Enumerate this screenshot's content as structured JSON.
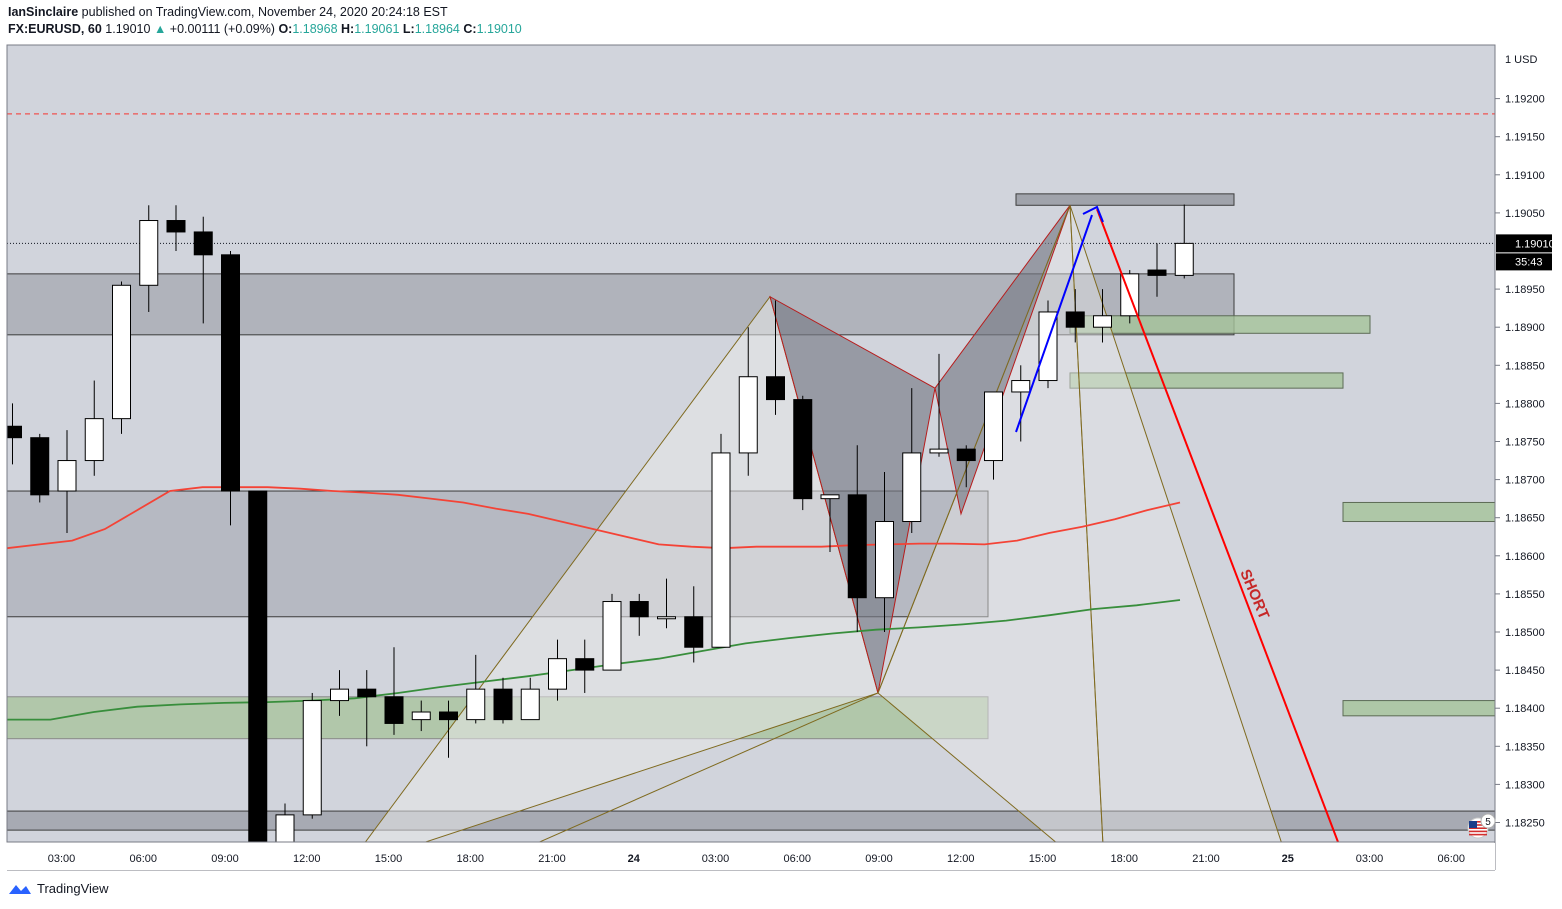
{
  "header": {
    "author": "IanSinclaire",
    "published": "published on TradingView.com, November 24, 2020 20:24:18 EST",
    "symbol": "FX:EURUSD, 60",
    "last": "1.19010",
    "change_arrow": "▲",
    "change": "+0.00111 (+0.09%)",
    "o_label": "O:",
    "o_value": "1.18968",
    "h_label": "H:",
    "h_value": "1.19061",
    "l_label": "L:",
    "l_value": "1.18964",
    "c_label": "C:",
    "c_value": "1.19010"
  },
  "footer": {
    "brand": "TradingView"
  },
  "colors": {
    "background": "#d1d4dc",
    "bull_candle": "#ffffff",
    "bear_candle": "#000000",
    "ma_red": "#f44336",
    "ma_green": "#388e3c",
    "short_arrow": "#ff0000",
    "swing_arrow": "#0000ff",
    "alert_line": "#ef5350",
    "pattern_fill": "#787b86",
    "pattern_edge": "#b71c1c",
    "triangle_edge": "#7f6a1f",
    "green_zone": "#a5c39a",
    "gray_zone": "#9598a1"
  },
  "chart_data": {
    "type": "candlestick",
    "instrument": "FX:EURUSD",
    "timeframe": "60",
    "currency_label": "USD",
    "y_axis": {
      "range": [
        1.1822,
        1.1921
      ],
      "ticks": [
        "1.19200",
        "1.19150",
        "1.19100",
        "1.19050",
        "1.18950",
        "1.18900",
        "1.18850",
        "1.18800",
        "1.18750",
        "1.18700",
        "1.18650",
        "1.18600",
        "1.18550",
        "1.18500",
        "1.18450",
        "1.18400",
        "1.18350",
        "1.18300",
        "1.18250"
      ],
      "top_label": "1 USD"
    },
    "x_axis": {
      "ticks": [
        "03:00",
        "06:00",
        "09:00",
        "12:00",
        "15:00",
        "18:00",
        "21:00",
        "24",
        "03:00",
        "06:00",
        "09:00",
        "12:00",
        "15:00",
        "18:00",
        "21:00",
        "25",
        "03:00",
        "06:00"
      ],
      "bold_ticks": [
        "24",
        "25"
      ]
    },
    "last_price": {
      "label": "1.19010",
      "countdown": "35:43",
      "value": 1.1901
    },
    "alert_level": 1.1918,
    "candles": [
      {
        "o": 1.1877,
        "h": 1.188,
        "l": 1.1872,
        "c": 1.18755
      },
      {
        "o": 1.18755,
        "h": 1.1876,
        "l": 1.1867,
        "c": 1.1868
      },
      {
        "o": 1.18685,
        "h": 1.18765,
        "l": 1.1863,
        "c": 1.18725
      },
      {
        "o": 1.18725,
        "h": 1.1883,
        "l": 1.18705,
        "c": 1.1878
      },
      {
        "o": 1.1878,
        "h": 1.1896,
        "l": 1.1876,
        "c": 1.18955
      },
      {
        "o": 1.18955,
        "h": 1.1906,
        "l": 1.1892,
        "c": 1.1904
      },
      {
        "o": 1.1904,
        "h": 1.1906,
        "l": 1.19,
        "c": 1.19025
      },
      {
        "o": 1.19025,
        "h": 1.19045,
        "l": 1.18905,
        "c": 1.18995
      },
      {
        "o": 1.18995,
        "h": 1.19,
        "l": 1.1864,
        "c": 1.18685
      },
      {
        "o": 1.18685,
        "h": 1.18685,
        "l": 1.18195,
        "c": 1.1821
      },
      {
        "o": 1.182,
        "h": 1.18275,
        "l": 1.1818,
        "c": 1.1826
      },
      {
        "o": 1.1826,
        "h": 1.1842,
        "l": 1.18255,
        "c": 1.1841
      },
      {
        "o": 1.1841,
        "h": 1.1845,
        "l": 1.1839,
        "c": 1.18425
      },
      {
        "o": 1.18425,
        "h": 1.1845,
        "l": 1.1835,
        "c": 1.18415
      },
      {
        "o": 1.18415,
        "h": 1.1848,
        "l": 1.18365,
        "c": 1.1838
      },
      {
        "o": 1.18385,
        "h": 1.1841,
        "l": 1.1837,
        "c": 1.18395
      },
      {
        "o": 1.18395,
        "h": 1.1841,
        "l": 1.18335,
        "c": 1.18385
      },
      {
        "o": 1.18385,
        "h": 1.1847,
        "l": 1.1838,
        "c": 1.18425
      },
      {
        "o": 1.18425,
        "h": 1.1844,
        "l": 1.1838,
        "c": 1.18385
      },
      {
        "o": 1.18385,
        "h": 1.1844,
        "l": 1.18385,
        "c": 1.18425
      },
      {
        "o": 1.18425,
        "h": 1.1849,
        "l": 1.1841,
        "c": 1.18465
      },
      {
        "o": 1.18465,
        "h": 1.1849,
        "l": 1.1842,
        "c": 1.1845
      },
      {
        "o": 1.1845,
        "h": 1.1855,
        "l": 1.1845,
        "c": 1.1854
      },
      {
        "o": 1.1854,
        "h": 1.1855,
        "l": 1.18495,
        "c": 1.1852
      },
      {
        "o": 1.1852,
        "h": 1.1857,
        "l": 1.18505,
        "c": 1.1852
      },
      {
        "o": 1.1852,
        "h": 1.1856,
        "l": 1.1846,
        "c": 1.1848
      },
      {
        "o": 1.1848,
        "h": 1.1876,
        "l": 1.1848,
        "c": 1.18735
      },
      {
        "o": 1.18735,
        "h": 1.189,
        "l": 1.18705,
        "c": 1.18835
      },
      {
        "o": 1.18835,
        "h": 1.18935,
        "l": 1.18785,
        "c": 1.18805
      },
      {
        "o": 1.18805,
        "h": 1.1881,
        "l": 1.1866,
        "c": 1.18675
      },
      {
        "o": 1.18675,
        "h": 1.1868,
        "l": 1.18605,
        "c": 1.1868
      },
      {
        "o": 1.1868,
        "h": 1.18745,
        "l": 1.185,
        "c": 1.18545
      },
      {
        "o": 1.18545,
        "h": 1.1871,
        "l": 1.185,
        "c": 1.18645
      },
      {
        "o": 1.18645,
        "h": 1.1882,
        "l": 1.1863,
        "c": 1.18735
      },
      {
        "o": 1.18735,
        "h": 1.18865,
        "l": 1.1873,
        "c": 1.1874
      },
      {
        "o": 1.1874,
        "h": 1.18745,
        "l": 1.1869,
        "c": 1.18725
      },
      {
        "o": 1.18725,
        "h": 1.18815,
        "l": 1.187,
        "c": 1.18815
      },
      {
        "o": 1.18815,
        "h": 1.1885,
        "l": 1.1875,
        "c": 1.1883
      },
      {
        "o": 1.1883,
        "h": 1.18935,
        "l": 1.1882,
        "c": 1.1892
      },
      {
        "o": 1.1892,
        "h": 1.1895,
        "l": 1.1888,
        "c": 1.189
      },
      {
        "o": 1.189,
        "h": 1.1895,
        "l": 1.1888,
        "c": 1.18915
      },
      {
        "o": 1.18915,
        "h": 1.18975,
        "l": 1.18905,
        "c": 1.1897
      },
      {
        "o": 1.18975,
        "h": 1.1901,
        "l": 1.1894,
        "c": 1.18968
      },
      {
        "o": 1.18968,
        "h": 1.19061,
        "l": 1.18964,
        "c": 1.1901
      }
    ],
    "moving_averages": [
      {
        "color": "red",
        "points": [
          1.1861,
          1.18615,
          1.1862,
          1.18635,
          1.1866,
          1.18685,
          1.1869,
          1.1869,
          1.1869,
          1.18688,
          1.18685,
          1.18683,
          1.1868,
          1.18675,
          1.1867,
          1.18662,
          1.18655,
          1.18645,
          1.18635,
          1.18625,
          1.18615,
          1.18612,
          1.1861,
          1.18612,
          1.18612,
          1.18612,
          1.18614,
          1.18615,
          1.18616,
          1.18616,
          1.18615,
          1.1862,
          1.1863,
          1.18638,
          1.18648,
          1.1866,
          1.1867
        ]
      },
      {
        "color": "green",
        "points": [
          1.18385,
          1.18385,
          1.18395,
          1.18402,
          1.18405,
          1.18407,
          1.18408,
          1.1841,
          1.18413,
          1.1842,
          1.18428,
          1.18435,
          1.18442,
          1.1845,
          1.18458,
          1.18465,
          1.18475,
          1.18485,
          1.18492,
          1.18498,
          1.18503,
          1.18506,
          1.1851,
          1.18515,
          1.18522,
          1.1853,
          1.18535,
          1.18542
        ]
      }
    ],
    "annotations": {
      "short_label": "SHORT",
      "zone_count_badge": "5"
    }
  }
}
